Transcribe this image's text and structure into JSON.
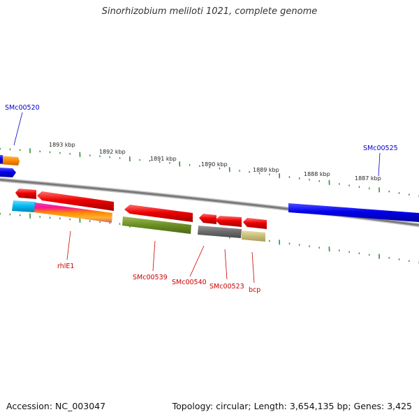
{
  "title": "Sinorhizobium meliloti 1021, complete genome",
  "footer": {
    "accession": "Accession: NC_003047",
    "summary": "Topology: circular; Length: 3,654,135 bp; Genes: 3,425"
  },
  "colors": {
    "label_blue": "#0000cc",
    "label_red": "#cc0000",
    "tick_green": "#2f8f2f",
    "backbone": "#808080"
  },
  "ruler": {
    "labels": [
      "1893 kbp",
      "1892 kbp",
      "1891 kbp",
      "1890 kbp",
      "1889 kbp",
      "1888 kbp",
      "1887 kbp"
    ]
  },
  "genes": {
    "top_labels": [
      "SMc00520",
      "SMc00525"
    ],
    "bottom_labels": [
      "rhlE1",
      "SMc00539",
      "SMc00540",
      "SMc00523",
      "bcp"
    ]
  }
}
